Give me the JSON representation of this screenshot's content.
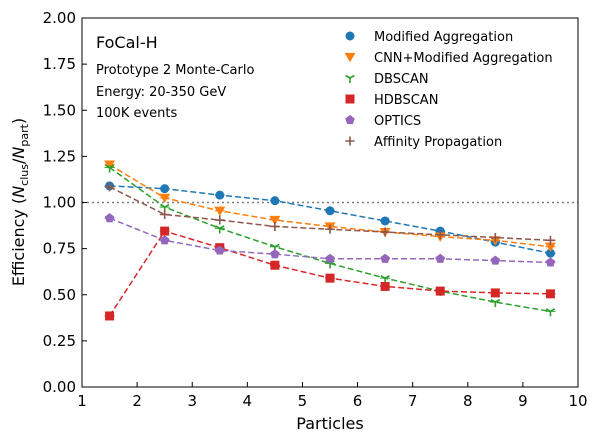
{
  "chart_data": {
    "type": "line",
    "xlabel": "Particles",
    "ylabel_main": "Efficiency (",
    "ylabel_n": "N",
    "ylabel_clus": "clus",
    "ylabel_slash": "/",
    "ylabel_part": "part",
    "ylabel_close": ")",
    "xlim": [
      1,
      10
    ],
    "ylim": [
      0,
      2
    ],
    "xticks": [
      "1",
      "2",
      "3",
      "4",
      "5",
      "6",
      "7",
      "8",
      "9",
      "10"
    ],
    "yticks": [
      "0.00",
      "0.25",
      "0.50",
      "0.75",
      "1.00",
      "1.25",
      "1.50",
      "1.75",
      "2.00"
    ],
    "reference_line": 1.0,
    "legend_position": "top-right",
    "annotations": {
      "title": "FoCal-H",
      "line1": "Prototype 2 Monte-Carlo",
      "line2": "Energy: 20-350 GeV",
      "line3": "100K events"
    },
    "x": [
      1.5,
      2.5,
      3.5,
      4.5,
      5.5,
      6.5,
      7.5,
      8.5,
      9.5
    ],
    "series": [
      {
        "name": "Modified Aggregation",
        "marker": "circle",
        "color": "#1f77b4",
        "values": [
          1.09,
          1.075,
          1.04,
          1.01,
          0.955,
          0.9,
          0.845,
          0.785,
          0.725
        ]
      },
      {
        "name": "CNN+Modified Aggregation",
        "marker": "triangle-down",
        "color": "#ff7f0e",
        "values": [
          1.205,
          1.025,
          0.955,
          0.905,
          0.87,
          0.84,
          0.815,
          0.795,
          0.76
        ]
      },
      {
        "name": "DBSCAN",
        "marker": "tri-down",
        "color": "#2ca02c",
        "values": [
          1.19,
          0.975,
          0.86,
          0.76,
          0.67,
          0.59,
          0.52,
          0.46,
          0.41
        ]
      },
      {
        "name": "HDBSCAN",
        "marker": "square",
        "color": "#d62728",
        "values": [
          0.385,
          0.845,
          0.755,
          0.66,
          0.59,
          0.545,
          0.52,
          0.51,
          0.505
        ]
      },
      {
        "name": "OPTICS",
        "marker": "pentagon",
        "color": "#9467bd",
        "values": [
          0.915,
          0.795,
          0.74,
          0.72,
          0.695,
          0.695,
          0.695,
          0.685,
          0.675
        ]
      },
      {
        "name": "Affinity Propagation",
        "marker": "plus",
        "color": "#8c564b",
        "values": [
          1.085,
          0.935,
          0.905,
          0.87,
          0.855,
          0.84,
          0.825,
          0.81,
          0.795
        ]
      }
    ]
  }
}
